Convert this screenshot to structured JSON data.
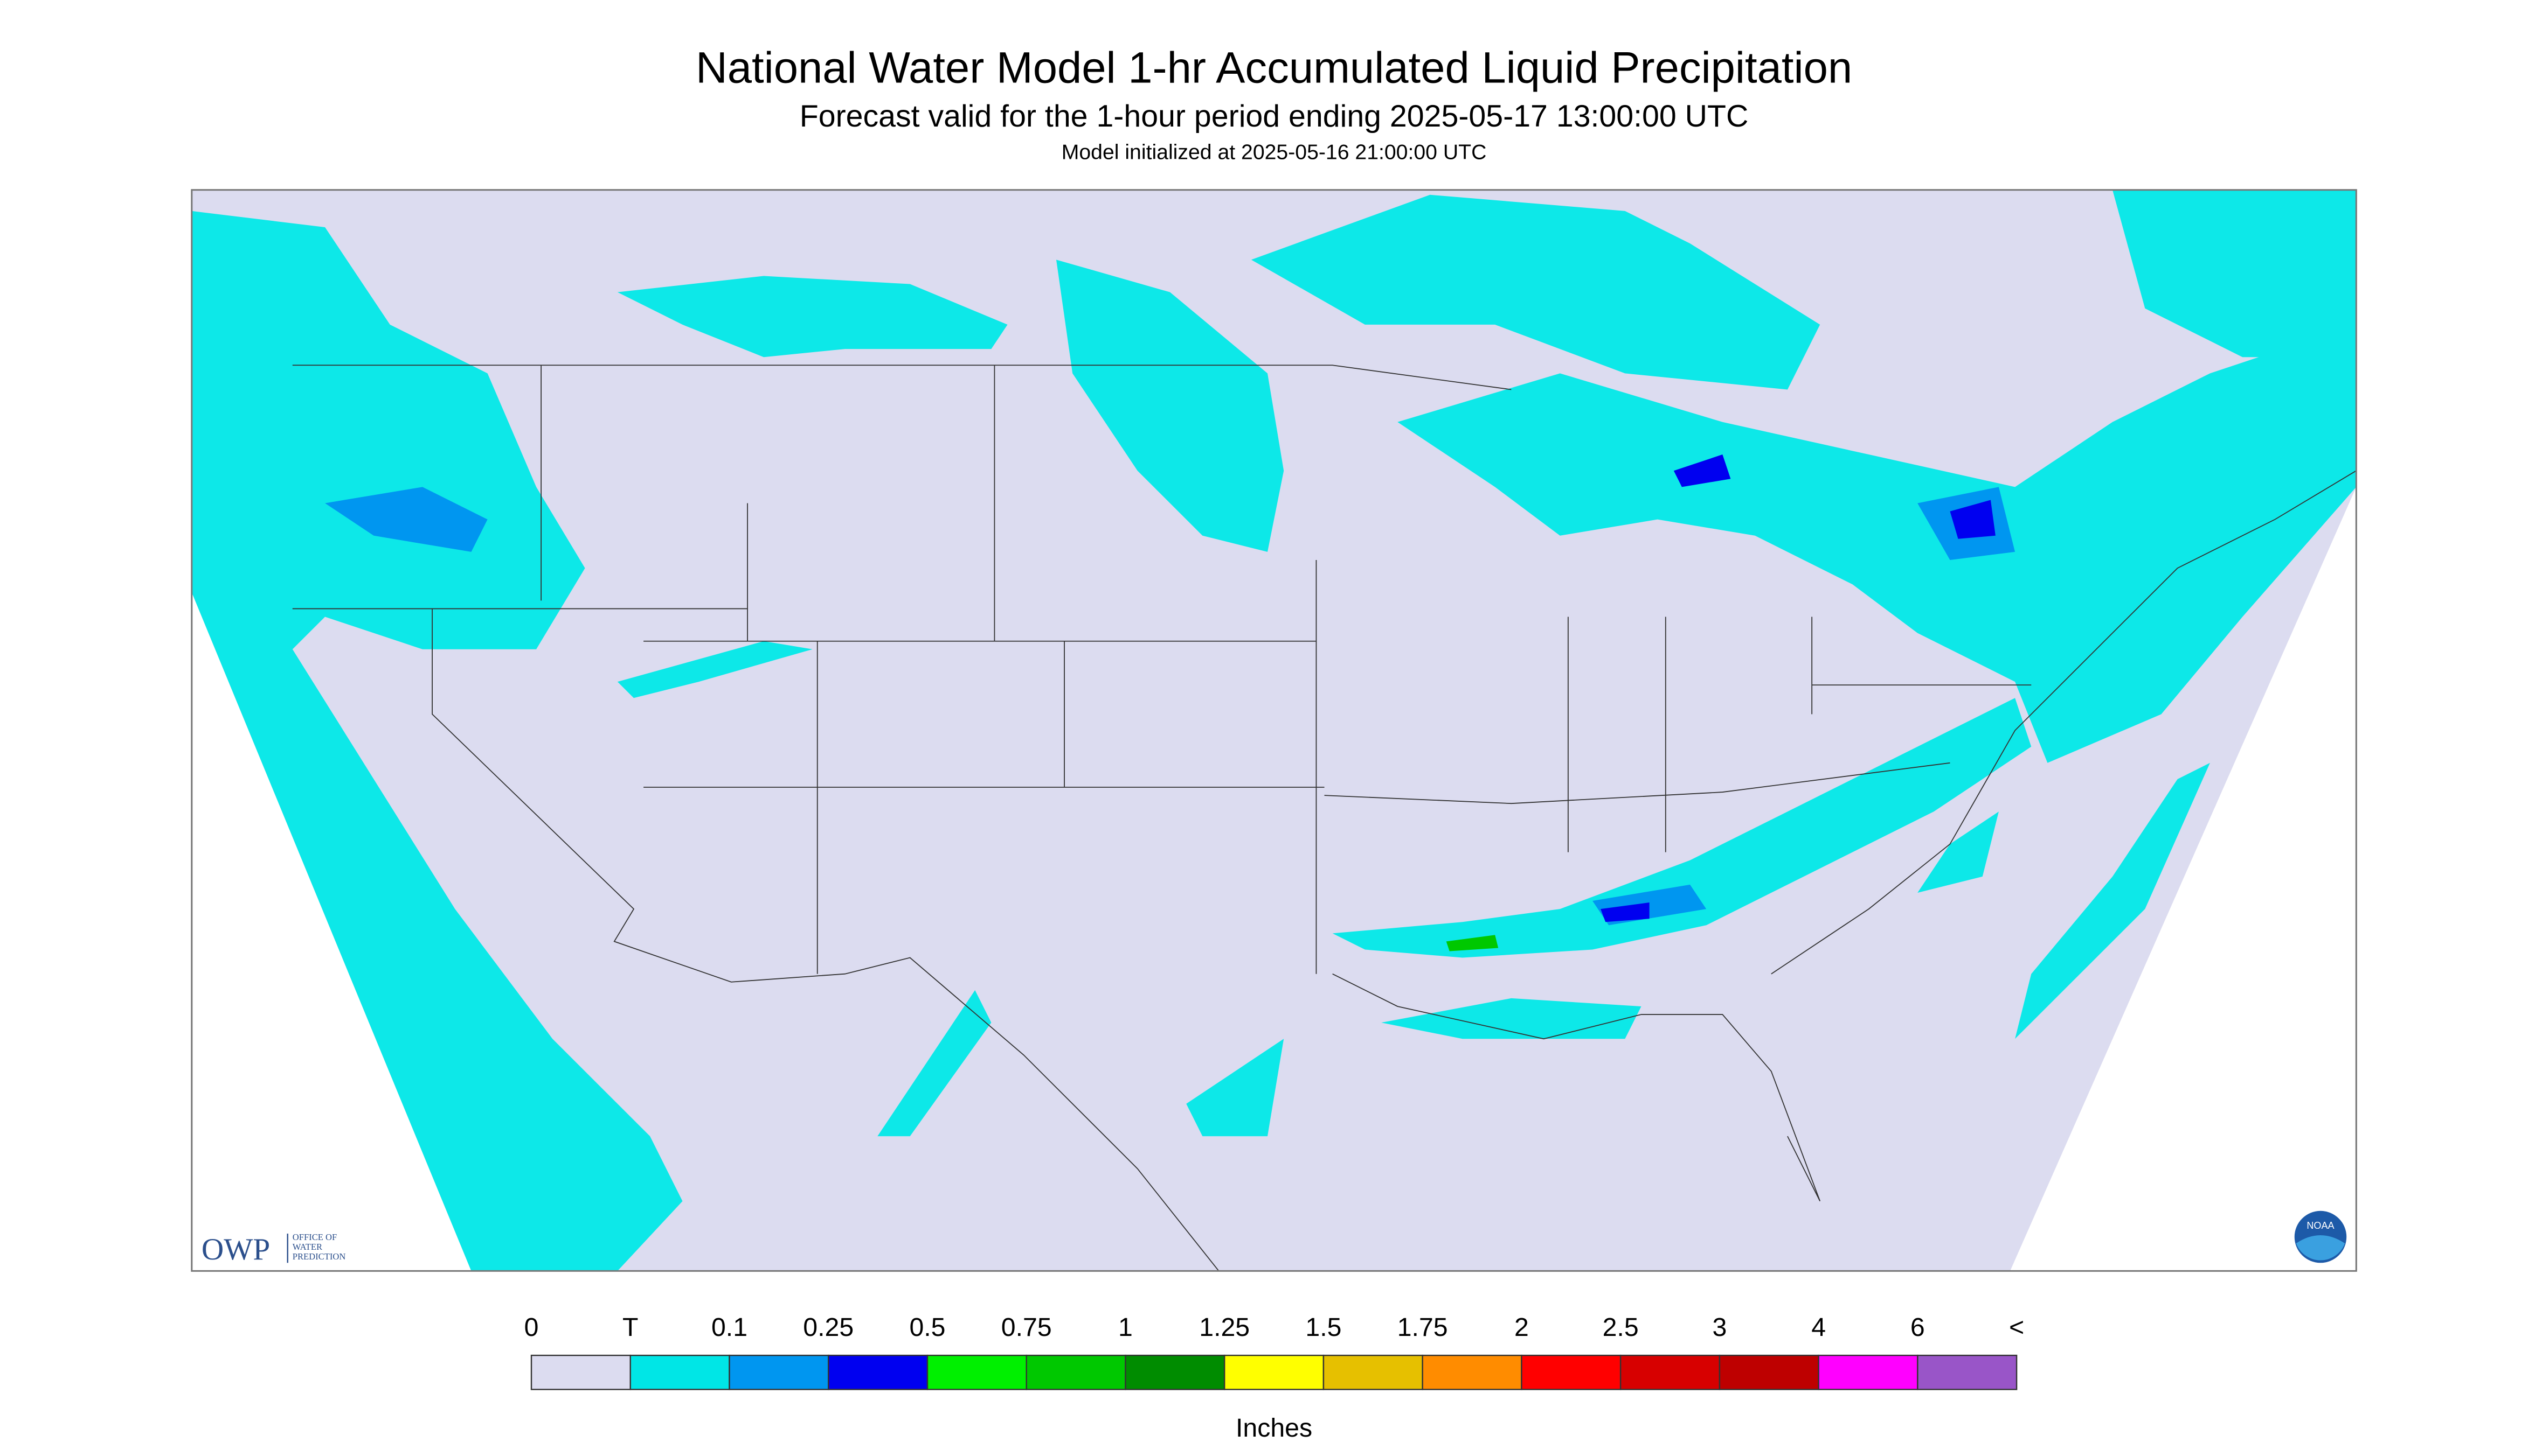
{
  "header": {
    "title": "National Water Model 1-hr Accumulated Liquid Precipitation",
    "subtitle": "Forecast valid for the 1-hour period ending 2025-05-17 13:00:00 UTC",
    "initialized": "Model initialized at 2025-05-16 21:00:00 UTC"
  },
  "logos": {
    "owp": "OWP",
    "owp_text": [
      "OFFICE OF",
      "WATER",
      "PREDICTION"
    ],
    "noaa": "NOAA"
  },
  "legend": {
    "labels": [
      "0",
      "T",
      "0.1",
      "0.25",
      "0.5",
      "0.75",
      "1",
      "1.25",
      "1.5",
      "1.75",
      "2",
      "2.5",
      "3",
      "4",
      "6",
      "<"
    ],
    "colors": [
      "#dcdcf0",
      "#00e6e6",
      "#0096f0",
      "#0000f0",
      "#00f000",
      "#00c800",
      "#008c00",
      "#ffff00",
      "#e6c000",
      "#ff8c00",
      "#ff0000",
      "#d70000",
      "#be0000",
      "#ff00ff",
      "#9955c8"
    ],
    "unit": "Inches"
  }
}
